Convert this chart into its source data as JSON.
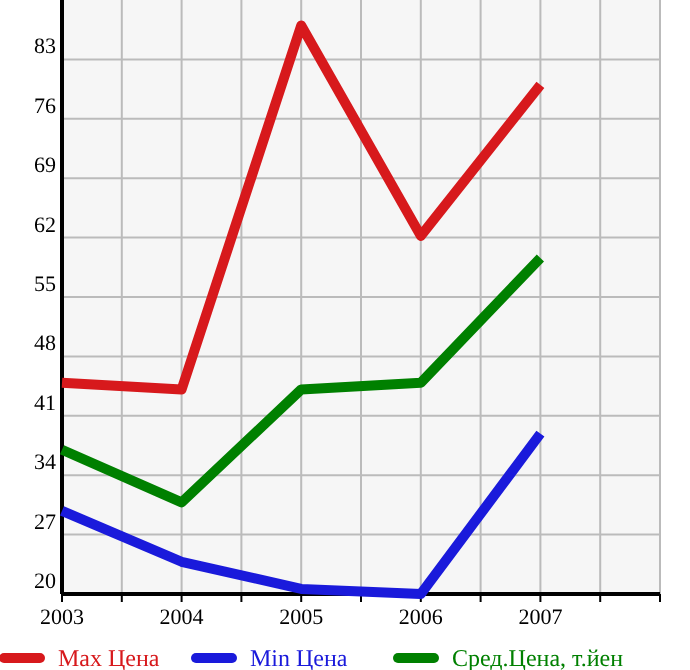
{
  "chart_data": {
    "type": "line",
    "x": [
      2003,
      2004,
      2005,
      2006,
      2007
    ],
    "xlim": [
      2003,
      2008
    ],
    "xticks": [
      2003,
      {
        "value": 2003.5,
        "label": null
      },
      2004,
      {
        "value": 2004.5,
        "label": null
      },
      2005,
      {
        "value": 2005.5,
        "label": null
      },
      2006,
      {
        "value": 2006.5,
        "label": null
      },
      2007,
      {
        "value": 2007.5,
        "label": null
      },
      {
        "value": 2008,
        "label": null
      }
    ],
    "ylim": [
      20,
      90
    ],
    "yticks": [
      20,
      27,
      34,
      41,
      48,
      55,
      62,
      69,
      76,
      83
    ],
    "grid": true,
    "legend": "bottom",
    "marker": "none",
    "line_style": "solid",
    "series": [
      {
        "name": "Max Цена",
        "color": "#d7191c",
        "values": [
          44.9,
          44.1,
          87,
          62.2,
          80
        ]
      },
      {
        "name": "Min Цена",
        "color": "#1a1adb",
        "values": [
          29.8,
          23.8,
          20.6,
          20,
          38.9
        ]
      },
      {
        "name": "Сред.Цена, т.йен",
        "color": "#008000",
        "values": [
          37,
          30.8,
          44.1,
          44.9,
          59.6
        ]
      }
    ]
  }
}
